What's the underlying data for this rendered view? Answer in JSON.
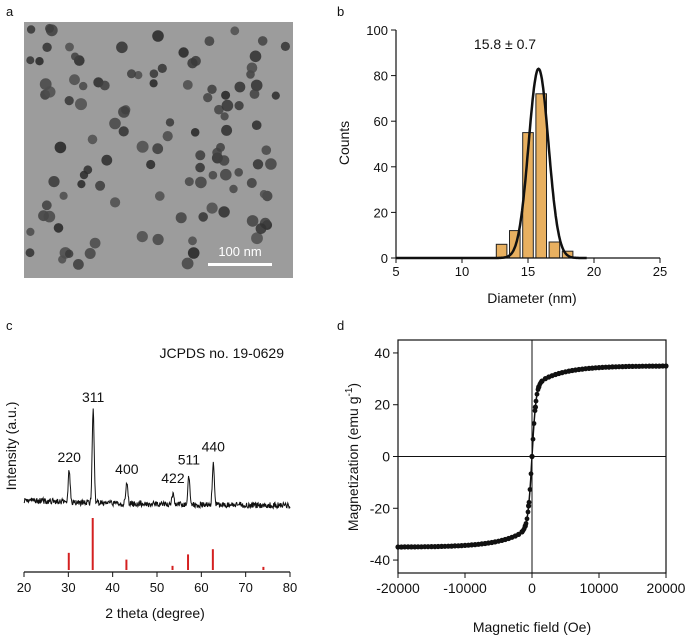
{
  "panel_labels": {
    "a": "a",
    "b": "b",
    "c": "c",
    "d": "d"
  },
  "panel_a": {
    "type": "image",
    "description": "TEM micrograph of nanoparticles",
    "scale_bar_label": "100 nm"
  },
  "chart_data": [
    {
      "id": "b",
      "type": "bar",
      "title": "",
      "xlabel": "Diameter (nm)",
      "ylabel": "Counts",
      "xlim": [
        5,
        25
      ],
      "ylim": [
        0,
        100
      ],
      "xticks": [
        5,
        10,
        15,
        20,
        25
      ],
      "yticks": [
        0,
        20,
        40,
        60,
        80,
        100
      ],
      "annotation": "15.8 ± 0.7",
      "bin_centers": [
        13,
        14,
        15,
        16,
        17,
        18
      ],
      "values": [
        6,
        12,
        55,
        72,
        7,
        3
      ],
      "fit": {
        "type": "gaussian",
        "mean": 15.8,
        "sigma": 0.75,
        "amplitude": 83
      },
      "bar_color": "#E8B060",
      "fit_color": "#111111"
    },
    {
      "id": "c",
      "type": "line",
      "title": "",
      "xlabel": "2 theta (degree)",
      "ylabel": "Intensity (a.u.)",
      "xlim": [
        20,
        80
      ],
      "xticks": [
        20,
        30,
        40,
        50,
        60,
        70,
        80
      ],
      "reference_label": "JCPDS no. 19-0629",
      "peaks": [
        {
          "label": "220",
          "x": 30.2,
          "height": 0.35
        },
        {
          "label": "311",
          "x": 35.6,
          "height": 1.0
        },
        {
          "label": "400",
          "x": 43.2,
          "height": 0.22
        },
        {
          "label": "422",
          "x": 53.6,
          "height": 0.12
        },
        {
          "label": "511",
          "x": 57.2,
          "height": 0.32
        },
        {
          "label": "440",
          "x": 62.7,
          "height": 0.46
        }
      ],
      "reference_lines": [
        {
          "x": 30.1,
          "height": 0.33
        },
        {
          "x": 35.5,
          "height": 1.0
        },
        {
          "x": 43.1,
          "height": 0.2
        },
        {
          "x": 53.5,
          "height": 0.08
        },
        {
          "x": 57.0,
          "height": 0.3
        },
        {
          "x": 62.6,
          "height": 0.4
        },
        {
          "x": 74.0,
          "height": 0.06
        }
      ],
      "ref_color": "#D42020"
    },
    {
      "id": "d",
      "type": "scatter",
      "title": "",
      "xlabel": "Magnetic field (Oe)",
      "ylabel_main": "Magnetization (emu g",
      "ylabel_sup": "-1",
      "ylabel_end": ")",
      "xlim": [
        -20000,
        20000
      ],
      "ylim": [
        -45,
        45
      ],
      "xticks": [
        -20000,
        -10000,
        0,
        10000,
        20000
      ],
      "yticks": [
        -40,
        -20,
        0,
        20,
        40
      ],
      "curve": {
        "ms": 35,
        "low_field_slope": 0.00032,
        "sat_width": 600,
        "point_step": 500
      }
    }
  ]
}
